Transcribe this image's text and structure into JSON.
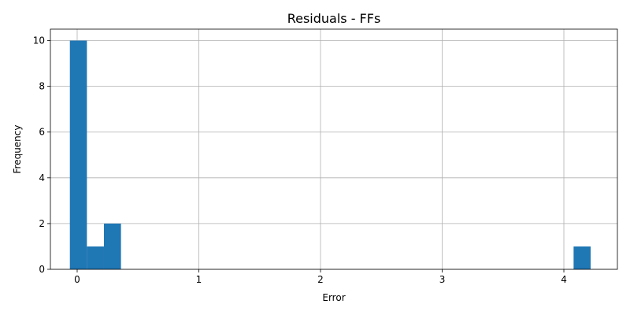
{
  "chart_data": {
    "type": "bar",
    "title": "Residuals - FFs",
    "xlabel": "Error",
    "ylabel": "Frequency",
    "xlim": [
      -0.22,
      4.44
    ],
    "ylim": [
      0,
      10.5
    ],
    "grid": true,
    "bar_color": "#1f77b4",
    "xticks": [
      0,
      1,
      2,
      3,
      4
    ],
    "yticks": [
      0,
      2,
      4,
      6,
      8,
      10
    ],
    "bins": [
      {
        "x0": -0.06,
        "x1": 0.08,
        "count": 10
      },
      {
        "x0": 0.08,
        "x1": 0.22,
        "count": 1
      },
      {
        "x0": 0.22,
        "x1": 0.36,
        "count": 2
      },
      {
        "x0": 4.08,
        "x1": 4.22,
        "count": 1
      }
    ]
  }
}
